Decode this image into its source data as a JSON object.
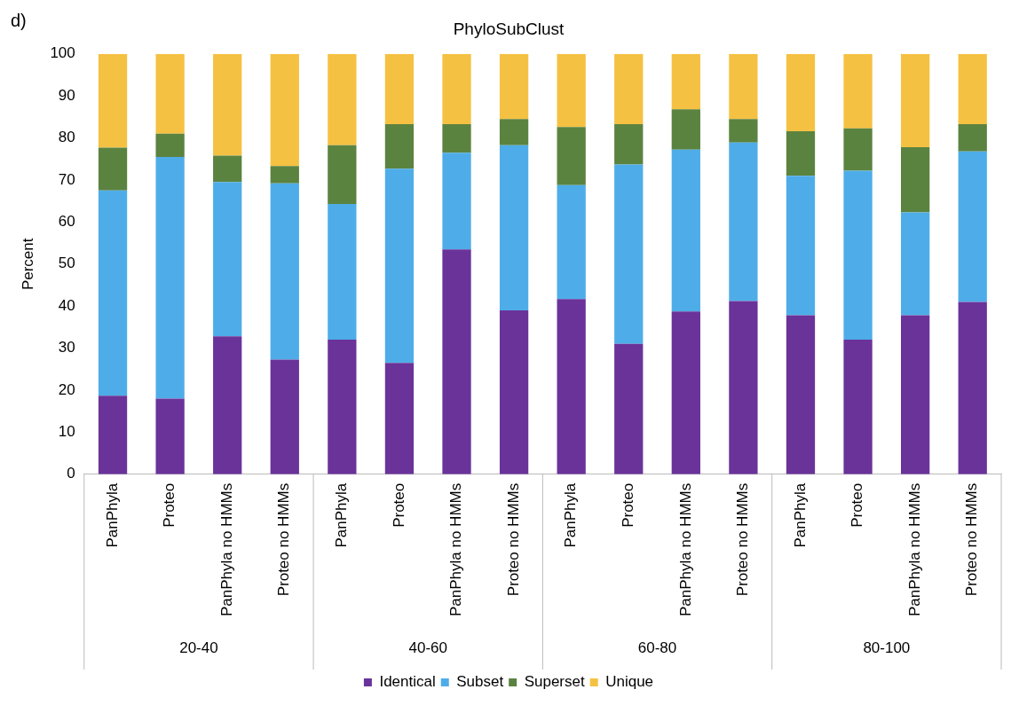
{
  "chart_data": {
    "type": "bar",
    "title": "PhyloSubClust",
    "ylabel": "Percent",
    "stacked": true,
    "grid": false,
    "legend": "bottom",
    "categories": [
      "PanPhyla",
      "Proteo",
      "PanPhyla no HMMs",
      "Proteo no HMMs",
      "PanPhyla",
      "Proteo",
      "PanPhyla no HMMs",
      "Proteo no HMMs",
      "PanPhyla",
      "Proteo",
      "PanPhyla no HMMs",
      "Proteo no HMMs",
      "PanPhyla",
      "Proteo",
      "PanPhyla no HMMs",
      "Proteo no HMMs"
    ],
    "annotations": [
      "d)",
      "20-40",
      "40-60",
      "60-80",
      "80-100"
    ],
    "ylim": [
      0,
      100
    ],
    "yticks": [
      0,
      10,
      20,
      30,
      40,
      50,
      60,
      70,
      80,
      90,
      100
    ],
    "series": [
      {
        "name": "Identical",
        "color": "#6a3399",
        "values": [
          18.7,
          18,
          32.8,
          27.3,
          32,
          26.5,
          53.5,
          39,
          41.7,
          31,
          38.7,
          41.2,
          37.8,
          32,
          37.8,
          41
        ]
      },
      {
        "name": "Subset",
        "color": "#4eade8",
        "values": [
          48.8,
          57.5,
          36.7,
          41.9,
          32.3,
          46.2,
          23,
          39.3,
          27.1,
          42.7,
          38.5,
          37.7,
          33.2,
          40.2,
          24.5,
          35.8
        ]
      },
      {
        "name": "Superset",
        "color": "#5b8340",
        "values": [
          10.2,
          5.5,
          6.3,
          4.1,
          14,
          10.6,
          6.8,
          6.2,
          13.8,
          9.6,
          9.6,
          5.6,
          10.6,
          10.1,
          15.5,
          6.5
        ]
      },
      {
        "name": "Unique",
        "color": "#f5c142",
        "values": [
          22.3,
          19,
          24.2,
          26.7,
          21.7,
          16.7,
          16.7,
          15.5,
          17.4,
          16.7,
          13.2,
          15.5,
          18.4,
          17.7,
          22.2,
          16.7
        ]
      }
    ]
  }
}
